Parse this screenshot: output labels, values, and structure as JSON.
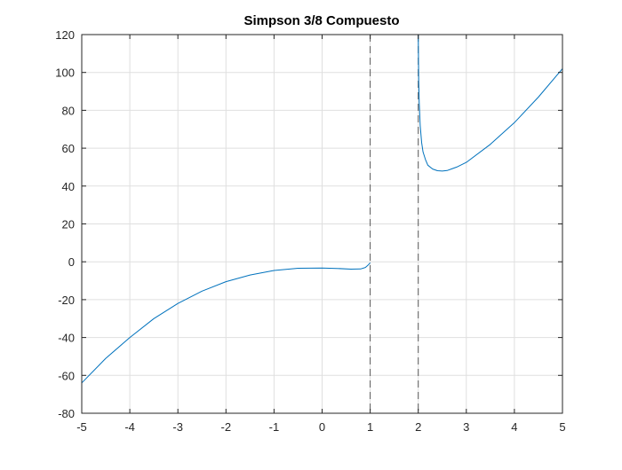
{
  "chart_data": {
    "type": "line",
    "title": "Simpson 3/8 Compuesto",
    "xlabel": "",
    "ylabel": "",
    "xlim": [
      -5,
      5
    ],
    "ylim": [
      -80,
      120
    ],
    "xticks": [
      -5,
      -4,
      -3,
      -2,
      -1,
      0,
      1,
      2,
      3,
      4,
      5
    ],
    "yticks": [
      -80,
      -60,
      -40,
      -20,
      0,
      20,
      40,
      60,
      80,
      100,
      120
    ],
    "grid": true,
    "legend": "none",
    "asymptotes_x": [
      1,
      2
    ],
    "series": [
      {
        "color": "#0072bd",
        "segments": [
          {
            "x": [
              -5,
              -4.5,
              -4,
              -3.5,
              -3,
              -2.5,
              -2,
              -1.5,
              -1,
              -0.5,
              0,
              0.3,
              0.6,
              0.8,
              0.9,
              0.95,
              1.0
            ],
            "y": [
              -64,
              -51,
              -40,
              -30,
              -22,
              -15.5,
              -10.5,
              -7,
              -4.6,
              -3.4,
              -3.3,
              -3.5,
              -3.9,
              -3.8,
              -3.0,
              -1.9,
              -0.5
            ]
          },
          {
            "x": [
              2.0,
              2.01,
              2.02,
              2.04,
              2.07,
              2.1,
              2.15,
              2.2,
              2.3,
              2.4,
              2.5,
              2.6,
              2.8,
              3,
              3.5,
              4,
              4.5,
              5
            ],
            "y": [
              120,
              96,
              84,
              72,
              63,
              58,
              54,
              51,
              49,
              48.1,
              47.9,
              48.2,
              50,
              52.5,
              62,
              73.5,
              87,
              102
            ]
          }
        ]
      }
    ]
  }
}
